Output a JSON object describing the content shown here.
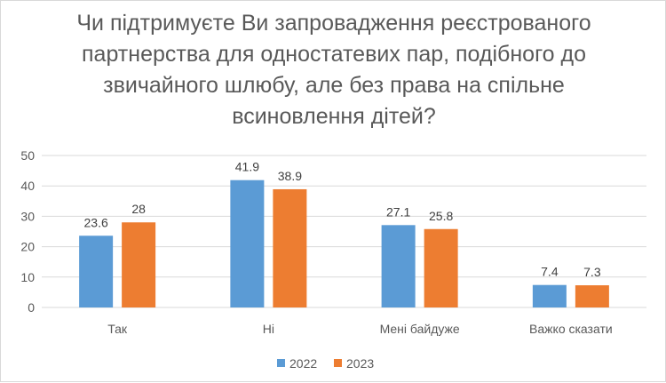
{
  "chart_data": {
    "type": "bar",
    "title": "Чи підтримуєте Ви запровадження реєстрованого партнерства для одностатевих пар, подібного до звичайного шлюбу, але без права на спільне всиновлення дітей?",
    "categories": [
      "Так",
      "Ні",
      "Мені байдуже",
      "Важко сказати"
    ],
    "series": [
      {
        "name": "2022",
        "values": [
          23.6,
          41.9,
          27.1,
          7.4
        ],
        "color": "#5b9bd5"
      },
      {
        "name": "2023",
        "values": [
          28,
          38.9,
          25.8,
          7.3
        ],
        "color": "#ed7d31"
      }
    ],
    "y_ticks": [
      "0",
      "10",
      "20",
      "30",
      "40",
      "50"
    ],
    "ylim": [
      0,
      50
    ],
    "grid": true,
    "legend_position": "bottom-center"
  }
}
